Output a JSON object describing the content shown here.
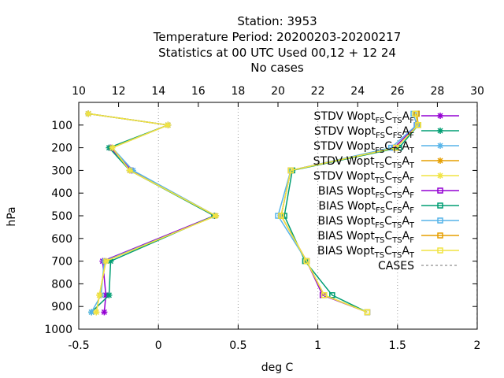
{
  "title_lines": [
    "Station:     3953",
    "Temperature  Period: 20200203-20200217",
    "Statistics at 00 UTC  Used  00,12  + 12 24",
    "No cases"
  ],
  "chart_data": {
    "type": "line",
    "xlabel": "deg C",
    "ylabel": "hPa",
    "x_bottom": {
      "range": [
        -0.5,
        2.0
      ],
      "ticks": [
        -0.5,
        0,
        0.5,
        1,
        1.5,
        2
      ],
      "tick_labels": [
        "-0.5",
        "0",
        "0.5",
        "1",
        "1.5",
        "2"
      ]
    },
    "x_top": {
      "range": [
        10,
        30
      ],
      "ticks": [
        10,
        12,
        14,
        16,
        18,
        20,
        22,
        24,
        26,
        28,
        30
      ],
      "tick_labels": [
        "10",
        "12",
        "14",
        "16",
        "18",
        "20",
        "22",
        "24",
        "26",
        "28",
        "30"
      ]
    },
    "y": {
      "range": [
        1000,
        0
      ],
      "inverted": true,
      "ticks": [
        100,
        200,
        300,
        400,
        500,
        600,
        700,
        800,
        900,
        1000
      ],
      "tick_labels": [
        "100",
        "200",
        "300",
        "400",
        "500",
        "600",
        "700",
        "800",
        "900",
        "1000"
      ]
    },
    "grid": "vertical dashed at x ticks",
    "legend_position": "top-right",
    "series": [
      {
        "name": "STDV Wopt_FS C_TS A_F",
        "legend": [
          [
            "STDV Wopt",
            ""
          ],
          [
            "FS",
            "sub"
          ],
          [
            "C",
            ""
          ],
          [
            "TS",
            "sub"
          ],
          [
            "A",
            ""
          ],
          [
            "F",
            "sub"
          ]
        ],
        "color": "#9400d3",
        "marker": "x",
        "axis": "bottom",
        "points": [
          [
            -0.44,
            50
          ],
          [
            0.06,
            100
          ],
          [
            -0.3,
            200
          ],
          [
            -0.17,
            300
          ],
          [
            0.35,
            500
          ],
          [
            -0.35,
            700
          ],
          [
            -0.33,
            850
          ],
          [
            -0.34,
            925
          ]
        ]
      },
      {
        "name": "STDV Wopt_FS C_FS A_F",
        "legend": [
          [
            "STDV Wopt",
            ""
          ],
          [
            "FS",
            "sub"
          ],
          [
            "C",
            ""
          ],
          [
            "FS",
            "sub"
          ],
          [
            "A",
            ""
          ],
          [
            "F",
            "sub"
          ]
        ],
        "color": "#009e73",
        "marker": "x",
        "axis": "bottom",
        "points": [
          [
            -0.44,
            50
          ],
          [
            0.06,
            100
          ],
          [
            -0.31,
            200
          ],
          [
            -0.18,
            300
          ],
          [
            0.35,
            500
          ],
          [
            -0.3,
            700
          ],
          [
            -0.31,
            850
          ],
          [
            -0.42,
            925
          ]
        ]
      },
      {
        "name": "STDV Wopt_FS C_TS A_T",
        "legend": [
          [
            "STDV Wopt",
            ""
          ],
          [
            "FS",
            "sub"
          ],
          [
            "C",
            ""
          ],
          [
            "TS",
            "sub"
          ],
          [
            "A",
            ""
          ],
          [
            "T",
            "sub"
          ]
        ],
        "color": "#56b4e9",
        "marker": "x",
        "axis": "bottom",
        "points": [
          [
            -0.44,
            50
          ],
          [
            0.06,
            100
          ],
          [
            -0.29,
            200
          ],
          [
            -0.16,
            300
          ],
          [
            0.36,
            500
          ],
          [
            -0.34,
            700
          ],
          [
            -0.36,
            850
          ],
          [
            -0.42,
            925
          ]
        ]
      },
      {
        "name": "STDV Wopt_TS C_TS A_T",
        "legend": [
          [
            "STDV Wopt",
            ""
          ],
          [
            "TS",
            "sub"
          ],
          [
            "C",
            ""
          ],
          [
            "TS",
            "sub"
          ],
          [
            "A",
            ""
          ],
          [
            "T",
            "sub"
          ]
        ],
        "color": "#e69f00",
        "marker": "x",
        "axis": "bottom",
        "points": [
          [
            -0.44,
            50
          ],
          [
            0.06,
            100
          ],
          [
            -0.29,
            200
          ],
          [
            -0.18,
            300
          ],
          [
            0.36,
            500
          ],
          [
            -0.33,
            700
          ],
          [
            -0.37,
            850
          ],
          [
            -0.39,
            925
          ]
        ]
      },
      {
        "name": "STDV Wopt_TS C_TS A_F",
        "legend": [
          [
            "STDV Wopt",
            ""
          ],
          [
            "TS",
            "sub"
          ],
          [
            "C",
            ""
          ],
          [
            "TS",
            "sub"
          ],
          [
            "A",
            ""
          ],
          [
            "F",
            "sub"
          ]
        ],
        "color": "#f0e442",
        "marker": "x",
        "axis": "bottom",
        "points": [
          [
            -0.44,
            50
          ],
          [
            0.06,
            100
          ],
          [
            -0.29,
            200
          ],
          [
            -0.18,
            300
          ],
          [
            0.36,
            500
          ],
          [
            -0.33,
            700
          ],
          [
            -0.37,
            850
          ],
          [
            -0.39,
            925
          ]
        ]
      },
      {
        "name": "BIAS Wopt_FS C_TS A_F",
        "legend": [
          [
            "BIAS Wopt",
            ""
          ],
          [
            "FS",
            "sub"
          ],
          [
            "C",
            ""
          ],
          [
            "TS",
            "sub"
          ],
          [
            "A",
            ""
          ],
          [
            "F",
            "sub"
          ]
        ],
        "color": "#9400d3",
        "marker": "square",
        "axis": "bottom",
        "points": [
          [
            1.62,
            50
          ],
          [
            1.62,
            100
          ],
          [
            1.48,
            200
          ],
          [
            0.83,
            300
          ],
          [
            0.77,
            500
          ],
          [
            0.93,
            700
          ],
          [
            1.03,
            850
          ],
          [
            1.31,
            925
          ]
        ]
      },
      {
        "name": "BIAS Wopt_FS C_FS A_F",
        "legend": [
          [
            "BIAS Wopt",
            ""
          ],
          [
            "FS",
            "sub"
          ],
          [
            "C",
            ""
          ],
          [
            "FS",
            "sub"
          ],
          [
            "A",
            ""
          ],
          [
            "F",
            "sub"
          ]
        ],
        "color": "#009e73",
        "marker": "square",
        "axis": "bottom",
        "points": [
          [
            1.62,
            50
          ],
          [
            1.63,
            100
          ],
          [
            1.51,
            200
          ],
          [
            0.84,
            300
          ],
          [
            0.79,
            500
          ],
          [
            0.92,
            700
          ],
          [
            1.09,
            850
          ],
          [
            1.31,
            925
          ]
        ]
      },
      {
        "name": "BIAS Wopt_FS C_TS A_T",
        "legend": [
          [
            "BIAS Wopt",
            ""
          ],
          [
            "FS",
            "sub"
          ],
          [
            "C",
            ""
          ],
          [
            "TS",
            "sub"
          ],
          [
            "A",
            ""
          ],
          [
            "T",
            "sub"
          ]
        ],
        "color": "#56b4e9",
        "marker": "square",
        "axis": "bottom",
        "points": [
          [
            1.6,
            50
          ],
          [
            1.62,
            100
          ],
          [
            1.46,
            200
          ],
          [
            0.83,
            300
          ],
          [
            0.75,
            500
          ],
          [
            0.93,
            700
          ],
          [
            1.04,
            850
          ],
          [
            1.31,
            925
          ]
        ]
      },
      {
        "name": "BIAS Wopt_TS C_TS A_F",
        "legend": [
          [
            "BIAS Wopt",
            ""
          ],
          [
            "TS",
            "sub"
          ],
          [
            "C",
            ""
          ],
          [
            "TS",
            "sub"
          ],
          [
            "A",
            ""
          ],
          [
            "F",
            "sub"
          ]
        ],
        "color": "#e69f00",
        "marker": "square",
        "axis": "bottom",
        "points": [
          [
            1.62,
            50
          ],
          [
            1.63,
            100
          ],
          [
            1.49,
            200
          ],
          [
            0.83,
            300
          ],
          [
            0.77,
            500
          ],
          [
            0.93,
            700
          ],
          [
            1.04,
            850
          ],
          [
            1.31,
            925
          ]
        ]
      },
      {
        "name": "BIAS Wopt_TS C_TS A_T",
        "legend": [
          [
            "BIAS Wopt",
            ""
          ],
          [
            "TS",
            "sub"
          ],
          [
            "C",
            ""
          ],
          [
            "TS",
            "sub"
          ],
          [
            "A",
            ""
          ],
          [
            "T",
            "sub"
          ]
        ],
        "color": "#f0e442",
        "marker": "square",
        "axis": "bottom",
        "points": [
          [
            1.61,
            50
          ],
          [
            1.63,
            100
          ],
          [
            1.49,
            200
          ],
          [
            0.83,
            300
          ],
          [
            0.77,
            500
          ],
          [
            0.93,
            700
          ],
          [
            1.04,
            850
          ],
          [
            1.31,
            925
          ]
        ]
      },
      {
        "name": "CASES",
        "legend": [
          [
            "CASES",
            ""
          ]
        ],
        "color": "#a0a0a0",
        "marker": "none",
        "dashed": true,
        "axis": "top",
        "points": [
          [
            30,
            1000
          ],
          [
            30,
            0
          ]
        ]
      }
    ]
  }
}
